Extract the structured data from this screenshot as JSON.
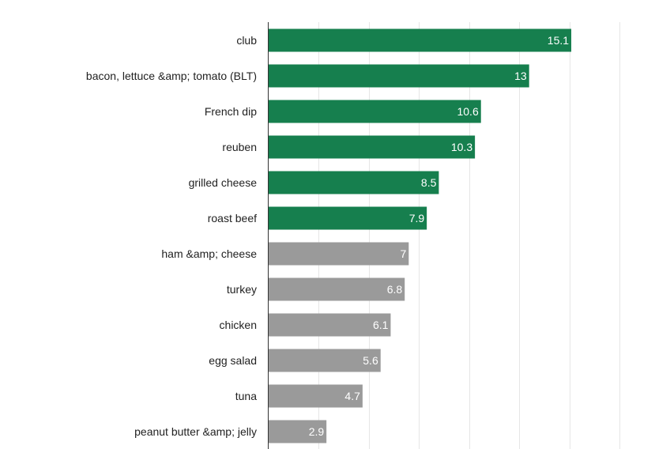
{
  "chart_data": {
    "type": "bar",
    "orientation": "horizontal",
    "categories": [
      "club",
      "bacon, lettuce &amp; tomato (BLT)",
      "French dip",
      "reuben",
      "grilled cheese",
      "roast beef",
      "ham &amp; cheese",
      "turkey",
      "chicken",
      "egg salad",
      "tuna",
      "peanut butter &amp; jelly"
    ],
    "values": [
      15.1,
      13,
      10.6,
      10.3,
      8.5,
      7.9,
      7,
      6.8,
      6.1,
      5.6,
      4.7,
      2.9
    ],
    "value_labels": [
      "15.1",
      "13",
      "10.6",
      "10.3",
      "8.5",
      "7.9",
      "7",
      "6.8",
      "6.1",
      "5.6",
      "4.7",
      "2.9"
    ],
    "highlighted_count": 6,
    "colors": {
      "highlight": "#167f4e",
      "muted": "#9a9a9a"
    },
    "xlim": [
      0,
      20
    ],
    "grid": true,
    "legend": "none"
  }
}
